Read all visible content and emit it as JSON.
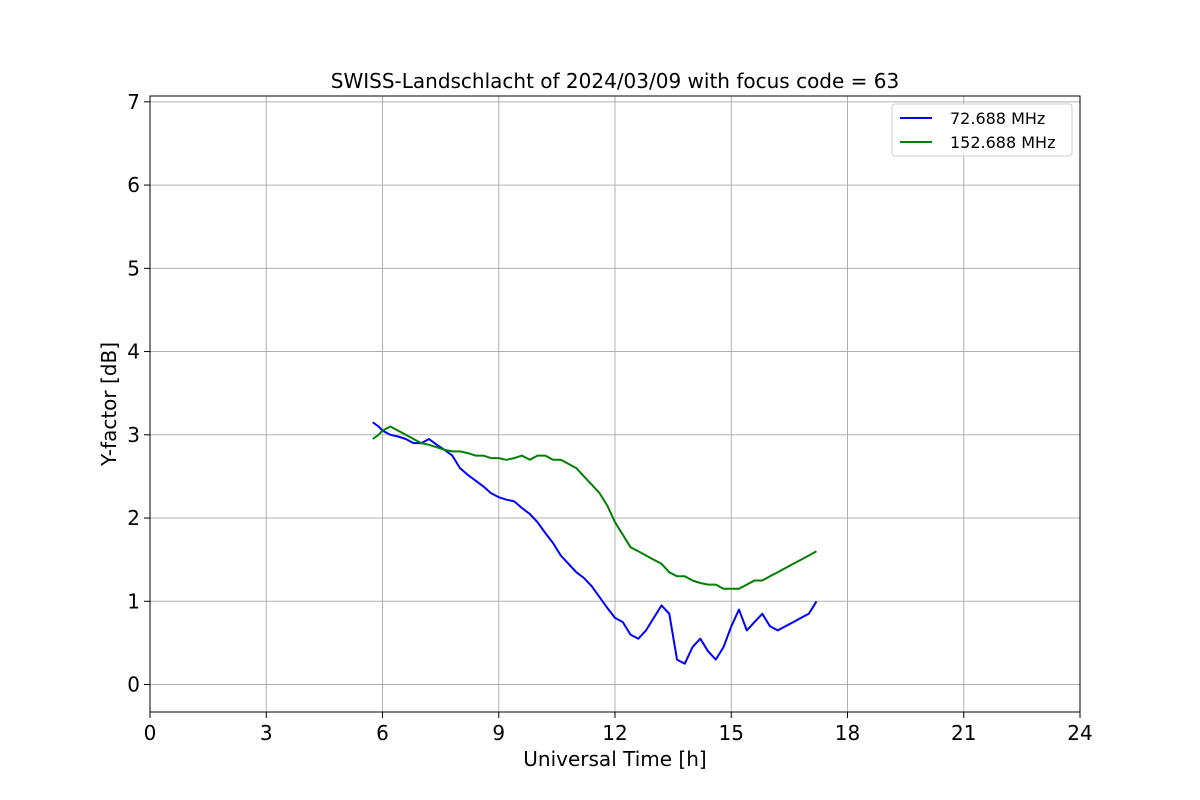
{
  "chart_data": {
    "type": "line",
    "title": "SWISS-Landschlacht of 2024/03/09 with focus code = 63",
    "xlabel": "Universal Time [h]",
    "ylabel": "Y-factor [dB]",
    "xlim": [
      0,
      24
    ],
    "ylim": [
      -0.33,
      7.07
    ],
    "xticks": [
      0,
      3,
      6,
      9,
      12,
      15,
      18,
      21,
      24
    ],
    "yticks": [
      0,
      1,
      2,
      3,
      4,
      5,
      6,
      7
    ],
    "grid": true,
    "legend_position": "top-right",
    "series": [
      {
        "name": "72.688 MHz",
        "color": "#0000ff",
        "x": [
          5.75,
          5.9,
          6.0,
          6.2,
          6.4,
          6.6,
          6.8,
          7.0,
          7.2,
          7.4,
          7.6,
          7.8,
          8.0,
          8.2,
          8.4,
          8.6,
          8.8,
          9.0,
          9.2,
          9.4,
          9.6,
          9.8,
          10.0,
          10.2,
          10.4,
          10.6,
          10.8,
          11.0,
          11.2,
          11.4,
          11.6,
          11.8,
          12.0,
          12.2,
          12.4,
          12.6,
          12.8,
          13.0,
          13.2,
          13.4,
          13.6,
          13.8,
          14.0,
          14.2,
          14.4,
          14.6,
          14.8,
          15.0,
          15.2,
          15.4,
          15.6,
          15.8,
          16.0,
          16.2,
          16.4,
          16.6,
          16.8,
          17.0,
          17.2
        ],
        "y": [
          3.15,
          3.1,
          3.05,
          3.0,
          2.98,
          2.95,
          2.9,
          2.9,
          2.95,
          2.88,
          2.82,
          2.75,
          2.6,
          2.52,
          2.45,
          2.38,
          2.3,
          2.25,
          2.22,
          2.2,
          2.12,
          2.05,
          1.95,
          1.82,
          1.7,
          1.55,
          1.45,
          1.35,
          1.28,
          1.18,
          1.05,
          0.92,
          0.8,
          0.75,
          0.6,
          0.55,
          0.65,
          0.8,
          0.95,
          0.85,
          0.3,
          0.25,
          0.45,
          0.55,
          0.4,
          0.3,
          0.45,
          0.7,
          0.9,
          0.65,
          0.75,
          0.85,
          0.7,
          0.65,
          0.7,
          0.75,
          0.8,
          0.85,
          1.0
        ]
      },
      {
        "name": "152.688 MHz",
        "color": "#008000",
        "x": [
          5.75,
          5.9,
          6.0,
          6.2,
          6.4,
          6.6,
          6.8,
          7.0,
          7.2,
          7.4,
          7.6,
          7.8,
          8.0,
          8.2,
          8.4,
          8.6,
          8.8,
          9.0,
          9.2,
          9.4,
          9.6,
          9.8,
          10.0,
          10.2,
          10.4,
          10.6,
          10.8,
          11.0,
          11.2,
          11.4,
          11.6,
          11.8,
          12.0,
          12.2,
          12.4,
          12.6,
          12.8,
          13.0,
          13.2,
          13.4,
          13.6,
          13.8,
          14.0,
          14.2,
          14.4,
          14.6,
          14.8,
          15.0,
          15.2,
          15.4,
          15.6,
          15.8,
          16.0,
          16.2,
          16.4,
          16.6,
          16.8,
          17.0,
          17.2
        ],
        "y": [
          2.95,
          3.0,
          3.05,
          3.1,
          3.05,
          3.0,
          2.95,
          2.9,
          2.88,
          2.85,
          2.82,
          2.8,
          2.8,
          2.78,
          2.75,
          2.75,
          2.72,
          2.72,
          2.7,
          2.72,
          2.75,
          2.7,
          2.75,
          2.75,
          2.7,
          2.7,
          2.65,
          2.6,
          2.5,
          2.4,
          2.3,
          2.15,
          1.95,
          1.8,
          1.65,
          1.6,
          1.55,
          1.5,
          1.45,
          1.35,
          1.3,
          1.3,
          1.25,
          1.22,
          1.2,
          1.2,
          1.15,
          1.15,
          1.15,
          1.2,
          1.25,
          1.25,
          1.3,
          1.35,
          1.4,
          1.45,
          1.5,
          1.55,
          1.6
        ]
      }
    ]
  }
}
